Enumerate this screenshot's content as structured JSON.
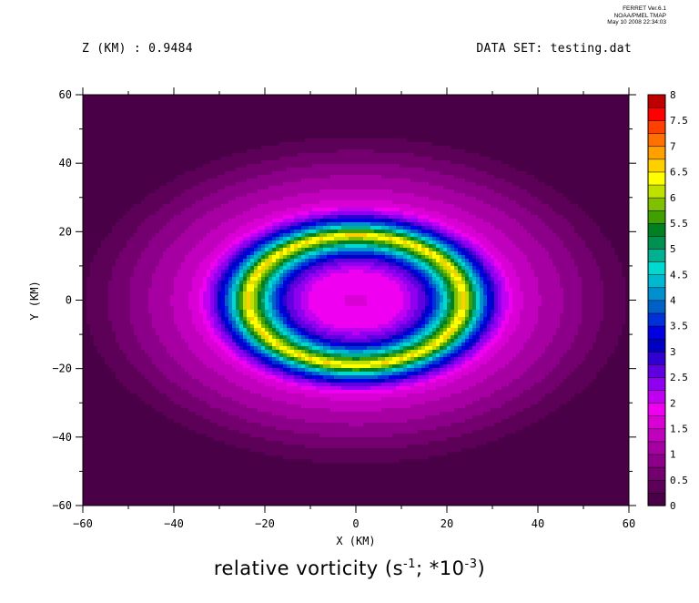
{
  "header": {
    "z_label": "Z (KM) : 0.9484",
    "dataset_label": "DATA SET: testing.dat",
    "ferret_lines": [
      "FERRET Ver.6.1",
      "NOAA/PMEL TMAP",
      "May 10 2008 22:34:03"
    ]
  },
  "caption": {
    "prefix": "relative vorticity (s",
    "exp1": "-1",
    "middle": "; *10",
    "exp2": "-3",
    "suffix": ")"
  },
  "chart_data": {
    "type": "heatmap",
    "title": "relative vorticity (s-1; *10-3)",
    "xlabel": "X (KM)",
    "ylabel": "Y (KM)",
    "xlim": [
      -60,
      60
    ],
    "ylim": [
      -60,
      60
    ],
    "x_ticks": [
      -60,
      -40,
      -20,
      0,
      20,
      40,
      60
    ],
    "y_ticks": [
      60,
      40,
      20,
      0,
      -20,
      -40,
      -60
    ],
    "colorbar": {
      "levels": [
        0,
        0.25,
        0.5,
        0.75,
        1,
        1.25,
        1.5,
        1.75,
        2,
        2.25,
        2.5,
        2.75,
        3,
        3.25,
        3.5,
        3.75,
        4,
        4.25,
        4.5,
        4.75,
        5,
        5.25,
        5.5,
        5.75,
        6,
        6.25,
        6.5,
        6.75,
        7,
        7.25,
        7.5,
        7.75,
        8
      ],
      "tick_labels": [
        "0",
        "0.5",
        "1",
        "1.5",
        "2",
        "2.5",
        "3",
        "3.5",
        "4",
        "4.5",
        "5",
        "5.5",
        "6",
        "6.5",
        "7",
        "7.5",
        "8"
      ],
      "colors": [
        "#4a0047",
        "#5c0058",
        "#740070",
        "#8c0089",
        "#a600a3",
        "#c000bc",
        "#d900d6",
        "#f000f0",
        "#c000f0",
        "#9000f0",
        "#6000e0",
        "#3000d0",
        "#0000c0",
        "#0000e0",
        "#0030d8",
        "#0060c8",
        "#0090d0",
        "#00b8d0",
        "#00d8d0",
        "#00b090",
        "#009050",
        "#008020",
        "#40a000",
        "#80c000",
        "#c0e000",
        "#ffff00",
        "#ffd000",
        "#ffa000",
        "#ff7000",
        "#ff4000",
        "#ff0000",
        "#c00000",
        "#800000"
      ]
    },
    "field": {
      "description_of_values": "radial vorticity profile, value at distance r (km) from center",
      "radial_profile": [
        {
          "r": 0,
          "v": 1.7
        },
        {
          "r": 8,
          "v": 1.9
        },
        {
          "r": 12,
          "v": 2.7
        },
        {
          "r": 15,
          "v": 4.2
        },
        {
          "r": 19,
          "v": 6.6
        },
        {
          "r": 22,
          "v": 4.2
        },
        {
          "r": 25,
          "v": 2.5
        },
        {
          "r": 28,
          "v": 1.6
        },
        {
          "r": 33,
          "v": 1.2
        },
        {
          "r": 38,
          "v": 0.9
        },
        {
          "r": 42,
          "v": 0.6
        },
        {
          "r": 46,
          "v": 0.35
        },
        {
          "r": 50,
          "v": 0.1
        }
      ],
      "x_stretch": 1.25
    }
  }
}
